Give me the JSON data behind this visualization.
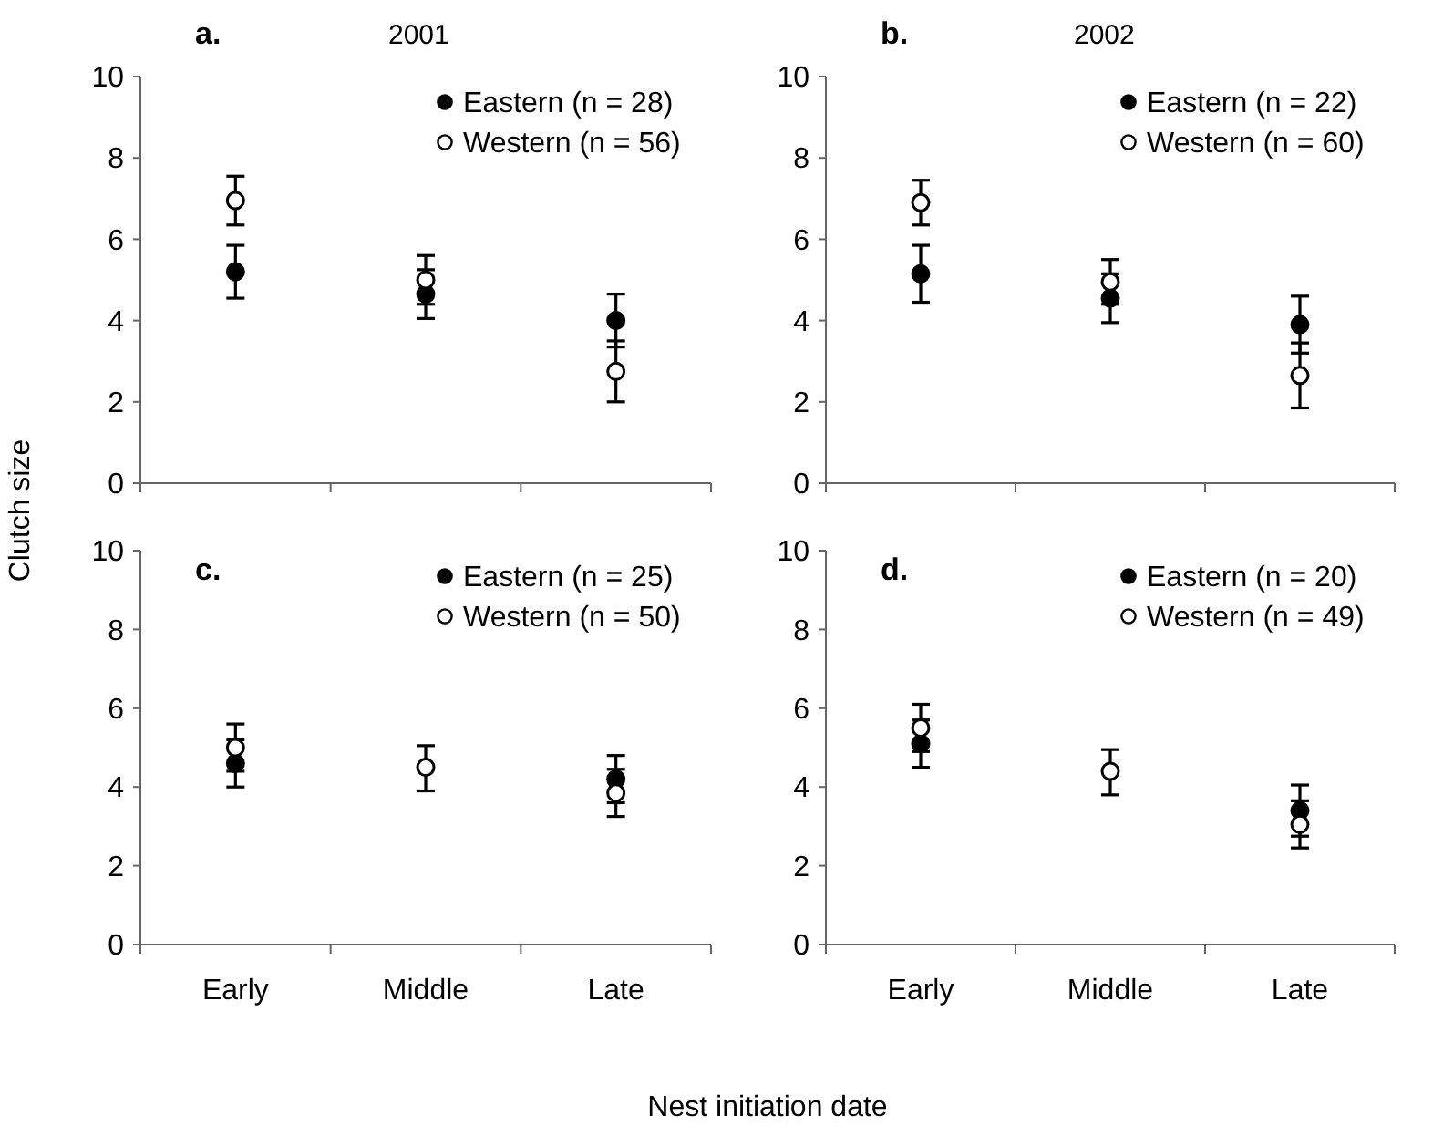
{
  "chart_data": [
    {
      "type": "scatter",
      "title": "a.",
      "subtitle": "2001",
      "ylabel": "Clutch size",
      "categories": [
        null,
        null,
        null
      ],
      "ylim": [
        0,
        10
      ],
      "yticks": [
        0,
        2,
        4,
        6,
        8,
        10
      ],
      "legend": "top right",
      "marker": "circle",
      "series": [
        {
          "name": "Eastern (n = 28)",
          "color": "#000000",
          "values": [
            5.2,
            4.65,
            4.0
          ],
          "errors": [
            0.65,
            0.6,
            0.65
          ]
        },
        {
          "name": "Western (n = 56)",
          "color": "#ffffff",
          "values": [
            6.95,
            5.0,
            2.75
          ],
          "errors": [
            0.6,
            0.6,
            0.75
          ]
        }
      ]
    },
    {
      "type": "scatter",
      "title": "b.",
      "subtitle": "2002",
      "categories": [
        null,
        null,
        null
      ],
      "ylim": [
        0,
        10
      ],
      "yticks": [
        0,
        2,
        4,
        6,
        8,
        10
      ],
      "legend": "top right",
      "marker": "circle",
      "series": [
        {
          "name": "Eastern (n = 22)",
          "color": "#000000",
          "values": [
            5.15,
            4.55,
            3.9
          ],
          "errors": [
            0.7,
            0.6,
            0.7
          ]
        },
        {
          "name": "Western (n = 60)",
          "color": "#ffffff",
          "values": [
            6.9,
            4.95,
            2.65
          ],
          "errors": [
            0.55,
            0.55,
            0.8
          ]
        }
      ]
    },
    {
      "type": "scatter",
      "title": "c.",
      "xlabel": "Nest initiation date",
      "categories": [
        "Early",
        "Middle",
        "Late"
      ],
      "ylim": [
        0,
        10
      ],
      "yticks": [
        0,
        2,
        4,
        6,
        8,
        10
      ],
      "legend": "top right",
      "marker": "circle",
      "series": [
        {
          "name": "Eastern (n = 25)",
          "color": "#000000",
          "values": [
            4.6,
            null,
            4.2
          ],
          "errors": [
            0.6,
            null,
            0.6
          ]
        },
        {
          "name": "Western (n = 50)",
          "color": "#ffffff",
          "values": [
            5.0,
            4.5,
            3.85
          ],
          "errors": [
            0.6,
            [
              3.9,
              5.05
            ],
            0.6
          ]
        }
      ]
    },
    {
      "type": "scatter",
      "title": "d.",
      "categories": [
        "Early",
        "Middle",
        "Late"
      ],
      "ylim": [
        0,
        10
      ],
      "yticks": [
        0,
        2,
        4,
        6,
        8,
        10
      ],
      "legend": "top right",
      "marker": "circle",
      "series": [
        {
          "name": "Eastern (n = 20)",
          "color": "#000000",
          "values": [
            5.1,
            null,
            3.4
          ],
          "errors": [
            0.6,
            null,
            0.65
          ]
        },
        {
          "name": "Western (n = 49)",
          "color": "#ffffff",
          "values": [
            5.5,
            4.4,
            3.05
          ],
          "errors": [
            0.6,
            [
              3.8,
              4.95
            ],
            0.6
          ]
        }
      ]
    }
  ]
}
